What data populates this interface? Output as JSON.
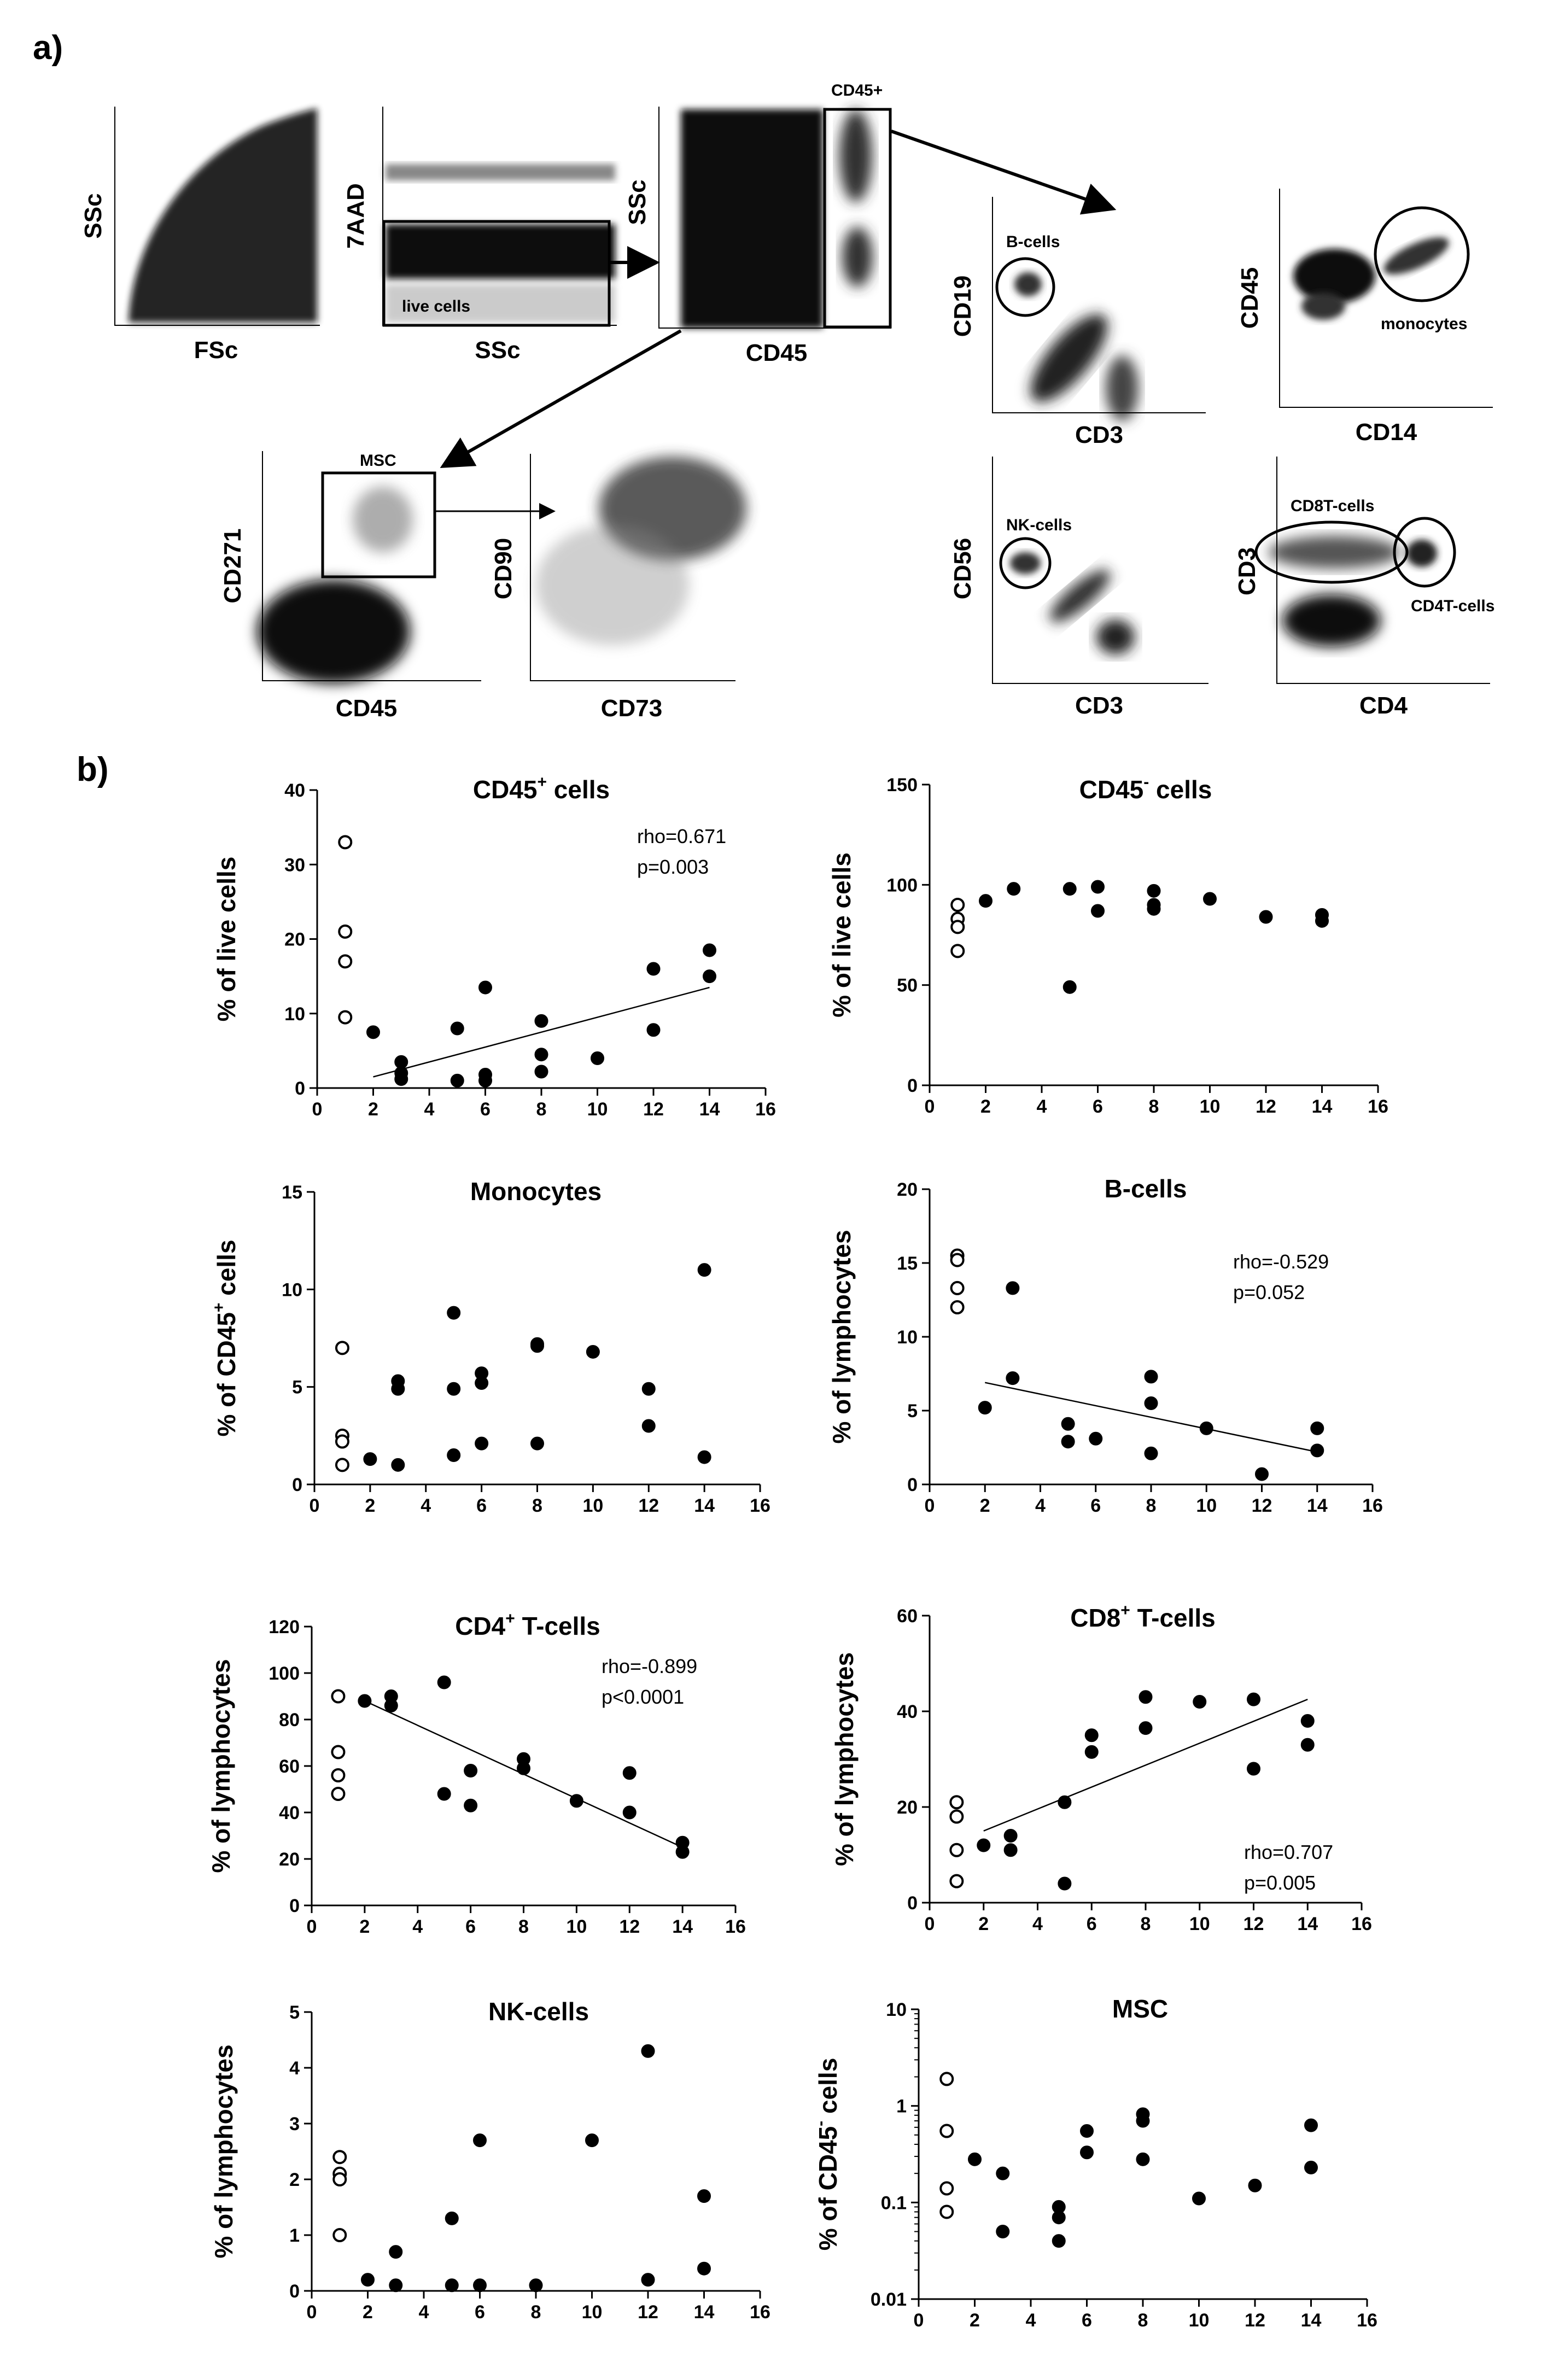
{
  "panel_labels": {
    "a": "a)",
    "b": "b)"
  },
  "flow": {
    "plots": [
      {
        "id": "p1",
        "x": "FSc",
        "y": "SSc"
      },
      {
        "id": "p2",
        "x": "SSc",
        "y": "7AAD"
      },
      {
        "id": "p3",
        "x": "CD45",
        "y": "SSc"
      },
      {
        "id": "p4",
        "x": "CD3",
        "y": "CD19"
      },
      {
        "id": "p5",
        "x": "CD14",
        "y": "CD45"
      },
      {
        "id": "p6",
        "x": "CD45",
        "y": "CD271"
      },
      {
        "id": "p7",
        "x": "CD73",
        "y": "CD90"
      },
      {
        "id": "p8",
        "x": "CD3",
        "y": "CD56"
      },
      {
        "id": "p9",
        "x": "CD4",
        "y": "CD3"
      }
    ],
    "gates": {
      "live": "live cells",
      "cd45": "CD45+",
      "bcells": "B-cells",
      "monocytes": "monocytes",
      "msc": "MSC",
      "nk": "NK-cells",
      "cd8t": "CD8T-cells",
      "cd4t": "CD4T-cells"
    }
  },
  "chart_data": [
    {
      "type": "scatter",
      "id": "c1",
      "title": "CD45",
      "title_sup": "+",
      "title_after": " cells",
      "ylabel": "% of live cells",
      "xlim": [
        0,
        16
      ],
      "ylim": [
        0,
        40
      ],
      "xticks": [
        0,
        2,
        4,
        6,
        8,
        10,
        12,
        14,
        16
      ],
      "yticks": [
        0,
        10,
        20,
        30,
        40
      ],
      "open": [
        [
          1,
          33
        ],
        [
          1,
          21
        ],
        [
          1,
          17
        ],
        [
          1,
          9.5
        ]
      ],
      "filled": [
        [
          2,
          7.5
        ],
        [
          3,
          3.5
        ],
        [
          3,
          2
        ],
        [
          3,
          1.2
        ],
        [
          5,
          8
        ],
        [
          5,
          1
        ],
        [
          6,
          13.5
        ],
        [
          6,
          1.8
        ],
        [
          6,
          1
        ],
        [
          8,
          9
        ],
        [
          8,
          4.5
        ],
        [
          8,
          2.2
        ],
        [
          10,
          4
        ],
        [
          12,
          16
        ],
        [
          12,
          7.8
        ],
        [
          14,
          18.5
        ],
        [
          14,
          15
        ]
      ],
      "fit": [
        [
          2,
          1.5
        ],
        [
          14,
          13.5
        ]
      ],
      "rho": "rho=0.671",
      "p": "p=0.003"
    },
    {
      "type": "scatter",
      "id": "c2",
      "title": "CD45",
      "title_sup": "-",
      "title_after": " cells",
      "ylabel": "% of live cells",
      "xlim": [
        0,
        16
      ],
      "ylim": [
        0,
        150
      ],
      "xticks": [
        0,
        2,
        4,
        6,
        8,
        10,
        12,
        14,
        16
      ],
      "yticks": [
        0,
        50,
        100,
        150
      ],
      "open": [
        [
          1,
          90
        ],
        [
          1,
          83
        ],
        [
          1,
          79
        ],
        [
          1,
          67
        ]
      ],
      "filled": [
        [
          2,
          92
        ],
        [
          3,
          98
        ],
        [
          5,
          98
        ],
        [
          5,
          49
        ],
        [
          6,
          99
        ],
        [
          6,
          87
        ],
        [
          8,
          97
        ],
        [
          8,
          90
        ],
        [
          8,
          88
        ],
        [
          10,
          93
        ],
        [
          12,
          84
        ],
        [
          14,
          85
        ],
        [
          14,
          82
        ]
      ],
      "fit": null,
      "rho": "",
      "p": ""
    },
    {
      "type": "scatter",
      "id": "c3",
      "title": "Monocytes",
      "title_sup": "",
      "title_after": "",
      "ylabel": "% of CD45",
      "ylabel_sup": "+",
      "ylabel_after": " cells",
      "xlim": [
        0,
        16
      ],
      "ylim": [
        0,
        15
      ],
      "xticks": [
        0,
        2,
        4,
        6,
        8,
        10,
        12,
        14,
        16
      ],
      "yticks": [
        0,
        5,
        10,
        15
      ],
      "open": [
        [
          1,
          7
        ],
        [
          1,
          2.5
        ],
        [
          1,
          2.2
        ],
        [
          1,
          1
        ]
      ],
      "filled": [
        [
          2,
          1.3
        ],
        [
          3,
          5.3
        ],
        [
          3,
          4.9
        ],
        [
          3,
          1
        ],
        [
          5,
          8.8
        ],
        [
          5,
          4.9
        ],
        [
          5,
          1.5
        ],
        [
          6,
          5.7
        ],
        [
          6,
          5.2
        ],
        [
          6,
          2.1
        ],
        [
          8,
          7.2
        ],
        [
          8,
          7.1
        ],
        [
          8,
          2.1
        ],
        [
          10,
          6.8
        ],
        [
          12,
          4.9
        ],
        [
          12,
          3
        ],
        [
          14,
          11
        ],
        [
          14,
          1.4
        ]
      ],
      "fit": null,
      "rho": "",
      "p": ""
    },
    {
      "type": "scatter",
      "id": "c4",
      "title": "B-cells",
      "title_sup": "",
      "title_after": "",
      "ylabel": "% of lymphocytes",
      "xlim": [
        0,
        16
      ],
      "ylim": [
        0,
        20
      ],
      "xticks": [
        0,
        2,
        4,
        6,
        8,
        10,
        12,
        14,
        16
      ],
      "yticks": [
        0,
        5,
        10,
        15,
        20
      ],
      "open": [
        [
          1,
          15.5
        ],
        [
          1,
          15.2
        ],
        [
          1,
          13.3
        ],
        [
          1,
          12
        ]
      ],
      "filled": [
        [
          2,
          5.2
        ],
        [
          3,
          13.3
        ],
        [
          3,
          7.2
        ],
        [
          5,
          4.1
        ],
        [
          5,
          2.9
        ],
        [
          6,
          3.1
        ],
        [
          8,
          7.3
        ],
        [
          8,
          5.5
        ],
        [
          8,
          2.1
        ],
        [
          10,
          3.8
        ],
        [
          12,
          0.7
        ],
        [
          14,
          3.8
        ],
        [
          14,
          2.3
        ]
      ],
      "fit": [
        [
          2,
          6.9
        ],
        [
          14,
          2.2
        ]
      ],
      "rho": "rho=-0.529",
      "p": "p=0.052"
    },
    {
      "type": "scatter",
      "id": "c5",
      "title": "CD4",
      "title_sup": "+",
      "title_after": " T-cells",
      "ylabel": "% of lymphocytes",
      "xlim": [
        0,
        16
      ],
      "ylim": [
        0,
        120
      ],
      "xticks": [
        0,
        2,
        4,
        6,
        8,
        10,
        12,
        14,
        16
      ],
      "yticks": [
        0,
        20,
        40,
        60,
        80,
        100,
        120
      ],
      "open": [
        [
          1,
          90
        ],
        [
          1,
          66
        ],
        [
          1,
          56
        ],
        [
          1,
          48
        ]
      ],
      "filled": [
        [
          2,
          88
        ],
        [
          3,
          90
        ],
        [
          3,
          86
        ],
        [
          5,
          96
        ],
        [
          5,
          48
        ],
        [
          6,
          58
        ],
        [
          6,
          43
        ],
        [
          8,
          63
        ],
        [
          8,
          59
        ],
        [
          10,
          45
        ],
        [
          12,
          57
        ],
        [
          12,
          40
        ],
        [
          14,
          27
        ],
        [
          14,
          23
        ]
      ],
      "fit": [
        [
          2,
          88
        ],
        [
          14,
          25
        ]
      ],
      "rho": "rho=-0.899",
      "p": "p<0.0001"
    },
    {
      "type": "scatter",
      "id": "c6",
      "title": "CD8",
      "title_sup": "+",
      "title_after": " T-cells",
      "ylabel": "% of lymphocytes",
      "xlim": [
        0,
        16
      ],
      "ylim": [
        0,
        60
      ],
      "xticks": [
        0,
        2,
        4,
        6,
        8,
        10,
        12,
        14,
        16
      ],
      "yticks": [
        0,
        20,
        40,
        60
      ],
      "open": [
        [
          1,
          21
        ],
        [
          1,
          18
        ],
        [
          1,
          11
        ],
        [
          1,
          4.5
        ]
      ],
      "filled": [
        [
          2,
          12
        ],
        [
          3,
          14
        ],
        [
          3,
          11
        ],
        [
          5,
          21
        ],
        [
          5,
          4
        ],
        [
          6,
          35
        ],
        [
          6,
          31.5
        ],
        [
          8,
          43
        ],
        [
          8,
          36.5
        ],
        [
          10,
          42
        ],
        [
          12,
          42.5
        ],
        [
          12,
          28
        ],
        [
          14,
          38
        ],
        [
          14,
          33
        ]
      ],
      "fit": [
        [
          2,
          15
        ],
        [
          14,
          42.5
        ]
      ],
      "rho": "rho=0.707",
      "p": "p=0.005"
    },
    {
      "type": "scatter",
      "id": "c7",
      "title": "NK-cells",
      "title_sup": "",
      "title_after": "",
      "ylabel": "% of lymphocytes",
      "xlim": [
        0,
        16
      ],
      "ylim": [
        0,
        5
      ],
      "xticks": [
        0,
        2,
        4,
        6,
        8,
        10,
        12,
        14,
        16
      ],
      "yticks": [
        0,
        1,
        2,
        3,
        4,
        5
      ],
      "open": [
        [
          1,
          2.4
        ],
        [
          1,
          2.1
        ],
        [
          1,
          2
        ],
        [
          1,
          1
        ]
      ],
      "filled": [
        [
          2,
          0.2
        ],
        [
          3,
          0.7
        ],
        [
          3,
          0.1
        ],
        [
          5,
          1.3
        ],
        [
          5,
          0.1
        ],
        [
          6,
          2.7
        ],
        [
          6,
          0.1
        ],
        [
          8,
          0.1
        ],
        [
          10,
          2.7
        ],
        [
          12,
          4.3
        ],
        [
          12,
          0.2
        ],
        [
          14,
          1.7
        ],
        [
          14,
          0.4
        ]
      ],
      "fit": null,
      "rho": "",
      "p": ""
    },
    {
      "type": "scatter",
      "id": "c8",
      "yscale": "log",
      "title": "MSC",
      "title_sup": "",
      "title_after": "",
      "ylabel": "% of CD45",
      "ylabel_sup": "-",
      "ylabel_after": " cells",
      "xlim": [
        0,
        16
      ],
      "ylim": [
        0.01,
        10
      ],
      "xticks": [
        0,
        2,
        4,
        6,
        8,
        10,
        12,
        14,
        16
      ],
      "yticks": [
        0.01,
        0.1,
        1,
        10
      ],
      "ytick_labels": [
        "0.01",
        "0.1",
        "1",
        "10"
      ],
      "open": [
        [
          1,
          1.9
        ],
        [
          1,
          0.55
        ],
        [
          1,
          0.14
        ],
        [
          1,
          0.08
        ]
      ],
      "filled": [
        [
          2,
          0.28
        ],
        [
          3,
          0.2
        ],
        [
          3,
          0.05
        ],
        [
          5,
          0.09
        ],
        [
          5,
          0.07
        ],
        [
          5,
          0.04
        ],
        [
          6,
          0.55
        ],
        [
          6,
          0.33
        ],
        [
          8,
          0.82
        ],
        [
          8,
          0.7
        ],
        [
          8,
          0.28
        ],
        [
          10,
          0.11
        ],
        [
          12,
          0.15
        ],
        [
          14,
          0.63
        ],
        [
          14,
          0.23
        ]
      ],
      "fit": null,
      "rho": "",
      "p": ""
    }
  ]
}
